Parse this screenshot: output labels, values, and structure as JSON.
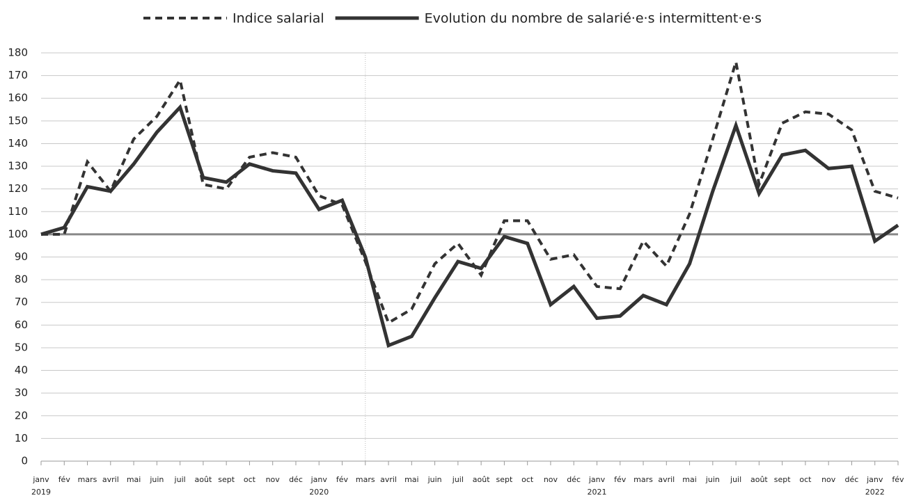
{
  "chart_data": {
    "type": "line",
    "categories": [
      "janv",
      "fév",
      "mars",
      "avril",
      "mai",
      "juin",
      "juil",
      "août",
      "sept",
      "oct",
      "nov",
      "déc",
      "janv",
      "fév",
      "mars",
      "avril",
      "mai",
      "juin",
      "juil",
      "août",
      "sept",
      "oct",
      "nov",
      "déc",
      "janv",
      "fév",
      "mars",
      "avril",
      "mai",
      "juin",
      "juil",
      "août",
      "sept",
      "oct",
      "nov",
      "déc",
      "janv",
      "fév"
    ],
    "year_labels": [
      "2019",
      null,
      null,
      null,
      null,
      null,
      null,
      null,
      null,
      null,
      null,
      null,
      "2020",
      null,
      null,
      null,
      null,
      null,
      null,
      null,
      null,
      null,
      null,
      null,
      "2021",
      null,
      null,
      null,
      null,
      null,
      null,
      null,
      null,
      null,
      null,
      null,
      "2022",
      null
    ],
    "series": [
      {
        "name": "Indice salarial",
        "color": "#333333",
        "dash": true,
        "values": [
          100,
          100,
          132,
          119,
          142,
          152,
          168,
          122,
          120,
          134,
          136,
          134,
          117,
          113,
          88,
          61,
          67,
          87,
          96,
          82,
          106,
          106,
          89,
          91,
          77,
          76,
          97,
          86,
          109,
          142,
          176,
          122,
          149,
          154,
          153,
          146,
          119,
          116
        ]
      },
      {
        "name": "Evolution du nombre de salarié·e·s intermittent·e·s",
        "color": "#333333",
        "dash": false,
        "values": [
          100,
          103,
          121,
          119,
          131,
          145,
          156,
          125,
          123,
          131,
          128,
          127,
          111,
          115,
          90,
          51,
          55,
          72,
          88,
          85,
          99,
          96,
          69,
          77,
          63,
          64,
          73,
          69,
          87,
          119,
          148,
          118,
          135,
          137,
          129,
          130,
          97,
          104
        ]
      }
    ],
    "reference_line": 100,
    "ylim": [
      0,
      180
    ],
    "yticks": [
      0,
      10,
      20,
      30,
      40,
      50,
      60,
      70,
      80,
      90,
      100,
      110,
      120,
      130,
      140,
      150,
      160,
      170,
      180
    ],
    "grid": true,
    "legend": "top"
  }
}
